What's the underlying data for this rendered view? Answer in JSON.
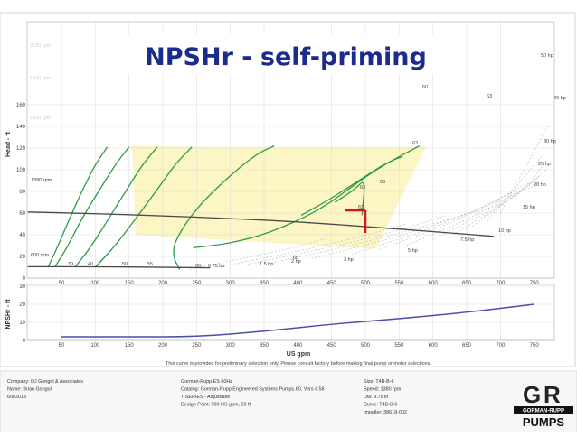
{
  "slide_title": "NPSHr - self-priming",
  "chart_data": [
    {
      "type": "line",
      "chart": "pump-head-curve",
      "ylabel": "Head - ft",
      "x_ticks": [
        50,
        100,
        150,
        200,
        250,
        300,
        350,
        400,
        450,
        500,
        550,
        600,
        650,
        700,
        750
      ],
      "y_ticks": [
        0,
        20,
        40,
        60,
        80,
        100,
        120,
        140,
        160
      ],
      "xlim": [
        0,
        770
      ],
      "ylim": [
        0,
        165
      ],
      "grid": true,
      "background_rpm_labels": [
        "2100 rpm",
        "1900 rpm",
        "1500 rpm"
      ],
      "shaded_operating_region": [
        [
          150,
          122
        ],
        [
          285,
          121
        ],
        [
          590,
          121
        ],
        [
          515,
          27
        ],
        [
          160,
          40
        ],
        [
          155,
          118
        ]
      ],
      "rpm_lines": [
        {
          "label": "1380 rpm",
          "x": [
            0,
            100,
            200,
            300,
            400,
            500,
            600,
            690
          ],
          "y": [
            61,
            59.5,
            57.5,
            55,
            52,
            47.5,
            43,
            38.5
          ]
        },
        {
          "label": "600 rpm",
          "x": [
            0,
            100,
            200,
            270
          ],
          "y": [
            10.5,
            10.5,
            10,
            9.5
          ]
        }
      ],
      "efficiency_curves": [
        {
          "label": "30",
          "x": [
            30,
            45,
            62,
            80,
            100,
            118
          ],
          "y": [
            10,
            30,
            55,
            80,
            105,
            121
          ]
        },
        {
          "label": "40",
          "x": [
            40,
            60,
            80,
            105,
            130,
            150
          ],
          "y": [
            10,
            30,
            55,
            80,
            105,
            121
          ]
        },
        {
          "label": "50",
          "x": [
            70,
            95,
            120,
            145,
            170,
            192
          ],
          "y": [
            10,
            30,
            55,
            80,
            105,
            121
          ]
        },
        {
          "label": "55",
          "x": [
            100,
            130,
            160,
            190,
            218,
            243
          ],
          "y": [
            10,
            30,
            55,
            80,
            105,
            121
          ]
        },
        {
          "label": "60",
          "x": [
            225,
            215,
            218,
            250,
            300,
            340,
            365
          ],
          "y": [
            8,
            20,
            35,
            65,
            95,
            115,
            122
          ]
        },
        {
          "label": "60",
          "x": [
            245,
            300,
            360,
            430,
            475,
            520,
            580
          ],
          "y": [
            28,
            32,
            42,
            62,
            82,
            102,
            122
          ]
        },
        {
          "label": "63",
          "x": [
            405,
            440,
            478,
            505,
            525,
            545,
            555
          ],
          "y": [
            58,
            70,
            85,
            96,
            104,
            110,
            112
          ]
        },
        {
          "label": "63",
          "x": [
            455,
            485,
            500,
            495
          ],
          "y": [
            70,
            82,
            92,
            58
          ]
        }
      ],
      "efficiency_labels": [
        "30",
        "40",
        "50",
        "55",
        "60",
        "60",
        "60",
        "63",
        "63",
        "63",
        "63",
        "63"
      ],
      "power_curves": [
        {
          "label": "0.75 hp",
          "x": [
            240,
            300,
            380,
            440
          ],
          "y": [
            8,
            16,
            26,
            36
          ]
        },
        {
          "label": "1.5 hp",
          "x": [
            280,
            380,
            480,
            560
          ],
          "y": [
            10,
            22,
            36,
            50
          ]
        },
        {
          "label": "2 hp",
          "x": [
            320,
            430,
            540,
            620
          ],
          "y": [
            12,
            26,
            42,
            58
          ]
        },
        {
          "label": "3 hp",
          "x": [
            360,
            480,
            600,
            700
          ],
          "y": [
            14,
            30,
            50,
            68
          ]
        },
        {
          "label": "5 hp",
          "x": [
            420,
            560,
            680,
            760
          ],
          "y": [
            18,
            40,
            66,
            88
          ]
        },
        {
          "label": "7.5 hp",
          "x": [
            480,
            620,
            720
          ],
          "y": [
            22,
            50,
            80
          ]
        },
        {
          "label": "10 hp",
          "x": [
            520,
            650,
            740
          ],
          "y": [
            26,
            56,
            88
          ]
        },
        {
          "label": "15 hp",
          "x": [
            560,
            680,
            750
          ],
          "y": [
            30,
            62,
            90
          ]
        },
        {
          "label": "20 hp",
          "x": [
            600,
            710,
            760
          ],
          "y": [
            36,
            70,
            95
          ]
        },
        {
          "label": "25 hp",
          "x": [
            630,
            730,
            770
          ],
          "y": [
            40,
            78,
            102
          ]
        },
        {
          "label": "30 hp",
          "x": [
            650,
            740,
            770
          ],
          "y": [
            44,
            84,
            110
          ]
        },
        {
          "label": "40 hp",
          "x": [
            680,
            760
          ],
          "y": [
            52,
            112
          ]
        },
        {
          "label": "50 hp",
          "x": [
            700,
            770
          ],
          "y": [
            60,
            140
          ]
        }
      ],
      "design_point": {
        "x": 500,
        "y": 50,
        "marker": "red-T"
      }
    },
    {
      "type": "line",
      "chart": "npshr-curve",
      "ylabel": "NPSHr - ft",
      "xlabel": "US gpm",
      "x_ticks": [
        50,
        100,
        150,
        200,
        250,
        300,
        350,
        400,
        450,
        500,
        550,
        600,
        650,
        700,
        750
      ],
      "y_ticks": [
        0,
        10,
        20,
        30
      ],
      "xlim": [
        0,
        770
      ],
      "ylim": [
        0,
        30
      ],
      "grid": true,
      "series": [
        {
          "name": "",
          "x": [
            50,
            150,
            250,
            350,
            450,
            550,
            650,
            750
          ],
          "y": [
            2,
            2,
            2,
            5,
            9,
            12,
            15.5,
            20
          ]
        }
      ]
    }
  ],
  "chart_text": {
    "power_labels_top": [
      "50 hp",
      "40 hp",
      "30 hp",
      "25 hp",
      "20 hp",
      "15 hp",
      "10 hp",
      "7.5 hp",
      "5 hp",
      "3 hp",
      "2 hp",
      "1.5 hp",
      "0.75 hp"
    ],
    "disclaimer": "This curve is provided for preliminary selection only. Please consult factory before making final pump or motor selections."
  },
  "footer": {
    "col1": [
      "Company: DJ Gongol & Associates",
      "Name: Brian Gongol",
      "6/8/2013"
    ],
    "col2": [
      "Gorman-Rupp ES 60Hz",
      "Catalog: Gorman-Rupp Engineered Systems Pumps.60, Vers 4.58",
      "T-SERIES - Adjustable",
      "Design Point: 500 US gpm, 50 ft"
    ],
    "col3": [
      "Size: T4B-B-6",
      "Speed: 1380 rpm",
      "Dia: 9.75 in",
      "Curve: T4B-B-6",
      "Impeller: 38618-002"
    ],
    "logo_text": [
      "G",
      "R",
      "GORMAN-RUPP",
      "PUMPS"
    ]
  },
  "colors": {
    "title": "#1b2b8e",
    "shaded": "#fbf6c4",
    "efficiency": "#2e9a48",
    "rpm_line": "#4a4a4a",
    "npshr_line": "#4a4fa8",
    "design_marker": "#e0101a",
    "grid": "#d9d9d9"
  }
}
